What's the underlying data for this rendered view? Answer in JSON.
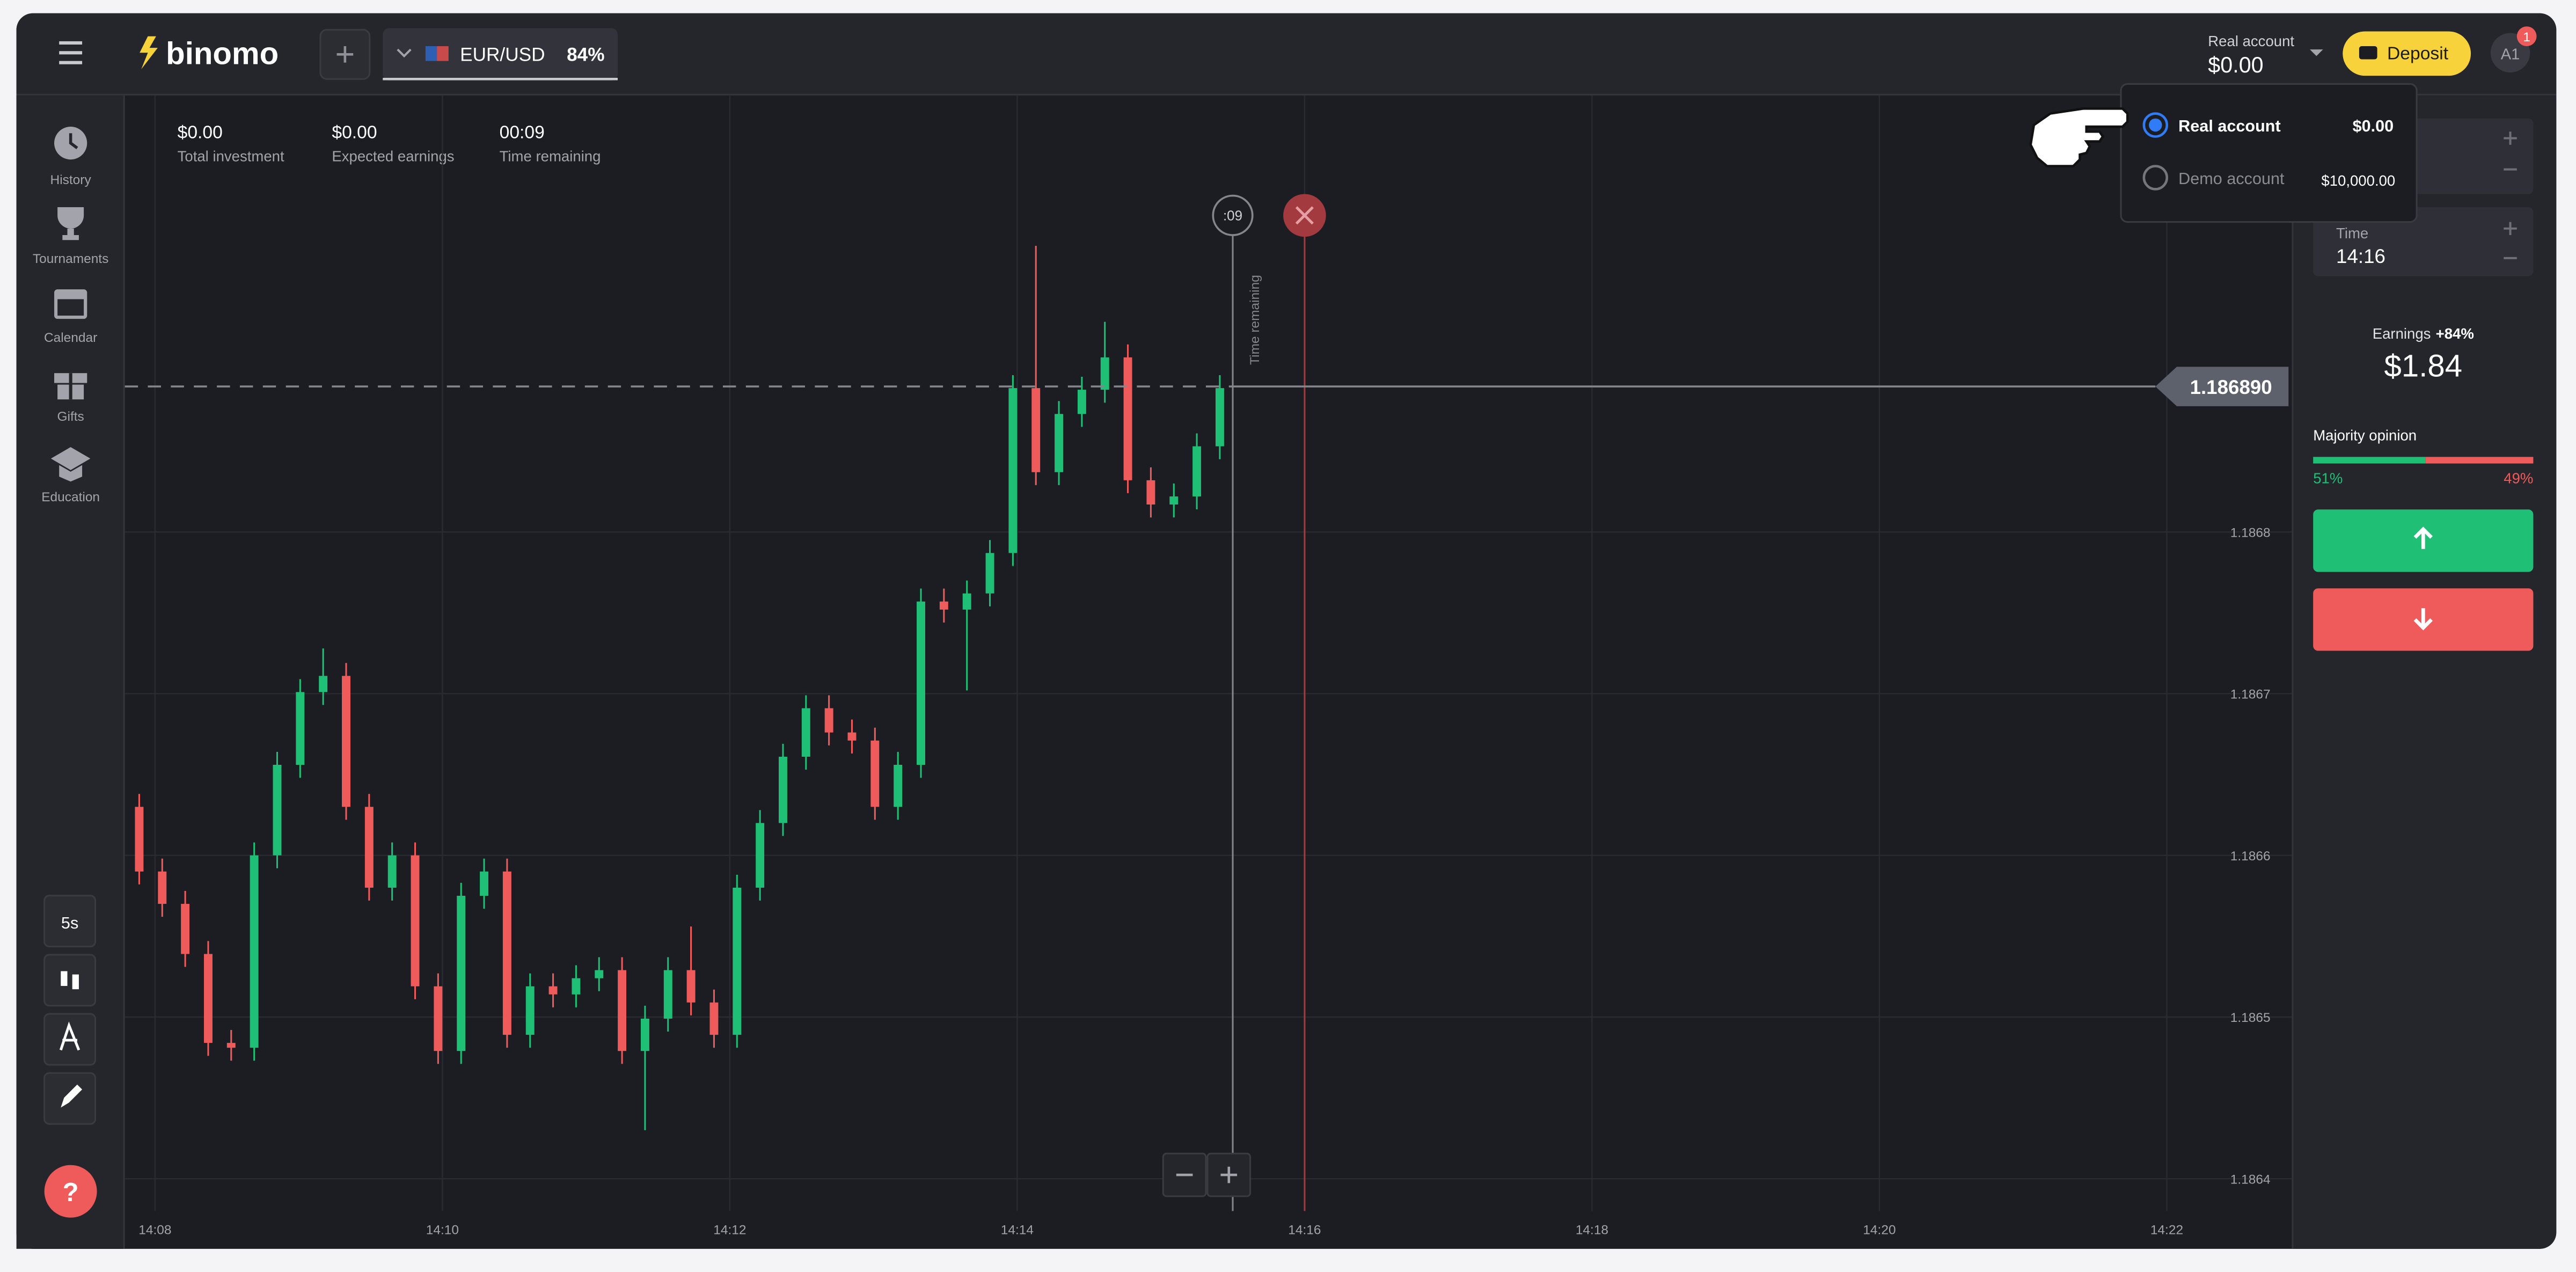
{
  "header": {
    "logo": "binomo",
    "asset": "EUR/USD",
    "payout": "84%",
    "account_type": "Real account",
    "balance": "$0.00",
    "deposit": "Deposit",
    "avatar": "A1",
    "notification_count": "1"
  },
  "sidebar": [
    "History",
    "Tournaments",
    "Calendar",
    "Gifts",
    "Education"
  ],
  "tools": {
    "interval": "5s",
    "help": "?"
  },
  "stats": [
    {
      "value": "$0.00",
      "label": "Total investment"
    },
    {
      "value": "$0.00",
      "label": "Expected earnings"
    },
    {
      "value": "00:09",
      "label": "Time remaining"
    }
  ],
  "account_menu": [
    {
      "name": "Real account",
      "balance": "$0.00",
      "selected": true
    },
    {
      "name": "Demo account",
      "balance": "$10,000.00",
      "selected": false
    }
  ],
  "trade_panel": {
    "time_label": "Time",
    "time_value": "14:16",
    "earnings_label": "Earnings",
    "earnings_rate": "+84%",
    "earnings_value": "$1.84",
    "majority_label": "Majority opinion",
    "majority": {
      "values": [
        51,
        49
      ],
      "value_labels": [
        "51%",
        "49%"
      ],
      "colors": [
        "#1fbf75",
        "#ef5b5b"
      ]
    }
  },
  "chart_data": {
    "type": "candlestick",
    "up_color": "#1fbf75",
    "down_color": "#ef5b5b",
    "xlim": [
      847.79,
      862.87
    ],
    "ylim": [
      1.18638,
      1.18707
    ],
    "xticks": [
      {
        "value": 848,
        "label": "14:08"
      },
      {
        "value": 850,
        "label": "14:10"
      },
      {
        "value": 852,
        "label": "14:12"
      },
      {
        "value": 854,
        "label": "14:14"
      },
      {
        "value": 856,
        "label": "14:16"
      },
      {
        "value": 858,
        "label": "14:18"
      },
      {
        "value": 860,
        "label": "14:20"
      },
      {
        "value": 862,
        "label": "14:22"
      }
    ],
    "yticks": [
      1.1864,
      1.1865,
      1.1866,
      1.1867,
      1.1868
    ],
    "grid": true,
    "current_price": {
      "value": 1.18689,
      "label": "1.186890"
    },
    "current_x": 855.5,
    "expiry_x": 856,
    "timer": ":09",
    "timer_label": "Time remaining",
    "x": [
      847.89,
      848.05,
      848.21,
      848.37,
      848.53,
      848.69,
      848.85,
      849.01,
      849.17,
      849.33,
      849.49,
      849.65,
      849.81,
      849.97,
      850.13,
      850.29,
      850.45,
      850.61,
      850.77,
      850.93,
      851.09,
      851.25,
      851.41,
      851.57,
      851.73,
      851.89,
      852.05,
      852.21,
      852.37,
      852.53,
      852.69,
      852.85,
      853.01,
      853.17,
      853.33,
      853.49,
      853.65,
      853.81,
      853.97,
      854.13,
      854.29,
      854.45,
      854.61,
      854.77,
      854.93,
      855.09,
      855.25,
      855.41
    ],
    "open": [
      1.18663,
      1.18659,
      1.18657,
      1.186539,
      1.186484,
      1.186481,
      1.1866,
      1.186656,
      1.186701,
      1.186711,
      1.18663,
      1.18658,
      1.1866,
      1.186519,
      1.186479,
      1.186575,
      1.18659,
      1.186489,
      1.186519,
      1.186514,
      1.186524,
      1.186529,
      1.186479,
      1.186499,
      1.186529,
      1.186509,
      1.186489,
      1.18658,
      1.18662,
      1.186661,
      1.186691,
      1.186676,
      1.186671,
      1.18663,
      1.186656,
      1.186757,
      1.186752,
      1.186762,
      1.186787,
      1.186889,
      1.186837,
      1.186873,
      1.186888,
      1.186908,
      1.186832,
      1.186817,
      1.186822,
      1.186853
    ],
    "close": [
      1.18659,
      1.18657,
      1.186539,
      1.186484,
      1.186481,
      1.1866,
      1.186656,
      1.186701,
      1.186711,
      1.18663,
      1.18658,
      1.1866,
      1.186519,
      1.186479,
      1.186575,
      1.18659,
      1.186489,
      1.186519,
      1.186514,
      1.186524,
      1.186529,
      1.186479,
      1.186499,
      1.186529,
      1.186509,
      1.186489,
      1.18658,
      1.18662,
      1.186661,
      1.186691,
      1.186676,
      1.186671,
      1.18663,
      1.186656,
      1.186757,
      1.186752,
      1.186762,
      1.186787,
      1.186889,
      1.186837,
      1.186873,
      1.186888,
      1.186908,
      1.186832,
      1.186817,
      1.186822,
      1.186853,
      1.186889
    ],
    "high": [
      1.186638,
      1.186598,
      1.186578,
      1.186547,
      1.186492,
      1.186608,
      1.186664,
      1.186709,
      1.186728,
      1.186719,
      1.186638,
      1.186608,
      1.186608,
      1.186527,
      1.186583,
      1.186598,
      1.186598,
      1.186527,
      1.186527,
      1.186532,
      1.186537,
      1.186537,
      1.186507,
      1.186537,
      1.186556,
      1.186517,
      1.186588,
      1.186628,
      1.186669,
      1.186699,
      1.186699,
      1.186684,
      1.186679,
      1.186664,
      1.186765,
      1.186765,
      1.18677,
      1.186795,
      1.186897,
      1.186977,
      1.186881,
      1.186896,
      1.18693,
      1.186916,
      1.18684,
      1.18683,
      1.186861,
      1.186897
    ],
    "low": [
      1.186582,
      1.186562,
      1.186531,
      1.186476,
      1.186473,
      1.186473,
      1.186592,
      1.186648,
      1.186693,
      1.186622,
      1.186572,
      1.186572,
      1.186511,
      1.186471,
      1.186471,
      1.186567,
      1.186481,
      1.186481,
      1.186506,
      1.186506,
      1.186516,
      1.186471,
      1.18643,
      1.186491,
      1.186501,
      1.186481,
      1.186481,
      1.186572,
      1.186612,
      1.186653,
      1.186668,
      1.186663,
      1.186622,
      1.186622,
      1.186648,
      1.186744,
      1.186702,
      1.186754,
      1.186779,
      1.186829,
      1.186829,
      1.186865,
      1.18688,
      1.186824,
      1.186809,
      1.186809,
      1.186814,
      1.186845
    ]
  }
}
